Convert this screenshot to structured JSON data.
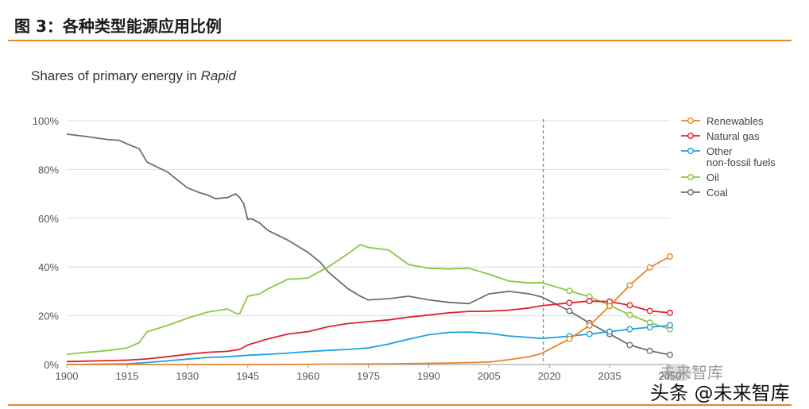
{
  "figure_title": "图 3：各种类型能源应用比例",
  "watermark": {
    "line1": "未来智库",
    "line2": "头条 @未来智库"
  },
  "chart_data": {
    "type": "line",
    "title": "Shares of primary energy in",
    "title_italic": "Rapid",
    "xlabel": "",
    "ylabel": "",
    "xlim": [
      1900,
      2050
    ],
    "ylim": [
      0,
      100
    ],
    "x_ticks": [
      1900,
      1915,
      1930,
      1945,
      1960,
      1975,
      1990,
      2005,
      2020,
      2035,
      2050
    ],
    "x_tick_labels": [
      "1900",
      "1915",
      "1930",
      "1945",
      "1960",
      "1975",
      "1990",
      "2005",
      "2020",
      "2035",
      "2050"
    ],
    "y_ticks": [
      0,
      20,
      40,
      60,
      80,
      100
    ],
    "y_tick_labels": [
      "0%",
      "20%",
      "40%",
      "60%",
      "80%",
      "100%"
    ],
    "forecast_divider_x": 2018.5,
    "legend_position": "right",
    "series": [
      {
        "name": "Renewables",
        "color": "#e8862a",
        "x": [
          1900,
          1950,
          1980,
          1995,
          2005,
          2010,
          2015,
          2018,
          2025,
          2030,
          2035,
          2040,
          2045,
          2050
        ],
        "values": [
          0,
          0,
          0.3,
          0.6,
          1.0,
          2.0,
          3.2,
          4.5,
          10.5,
          16,
          24,
          32.5,
          39.8,
          44.3
        ],
        "markers_from": 2025
      },
      {
        "name": "Natural gas",
        "color": "#e0202e",
        "x": [
          1900,
          1905,
          1910,
          1915,
          1920,
          1925,
          1930,
          1935,
          1940,
          1943,
          1945,
          1950,
          1955,
          1960,
          1965,
          1970,
          1975,
          1980,
          1985,
          1990,
          1995,
          2000,
          2005,
          2010,
          2015,
          2018,
          2025,
          2030,
          2035,
          2040,
          2045,
          2050
        ],
        "values": [
          1.2,
          1.4,
          1.6,
          1.8,
          2.3,
          3.2,
          4.2,
          5.0,
          5.4,
          6.2,
          8.0,
          10.5,
          12.5,
          13.5,
          15.5,
          16.8,
          17.6,
          18.3,
          19.4,
          20.3,
          21.2,
          21.8,
          21.9,
          22.3,
          23.2,
          24.1,
          25.3,
          26.0,
          25.8,
          24.3,
          22.0,
          21.2
        ],
        "markers_from": 2025
      },
      {
        "name": "Other\nnon-fossil fuels",
        "color": "#1ba3dc",
        "x": [
          1900,
          1915,
          1920,
          1925,
          1930,
          1935,
          1940,
          1945,
          1950,
          1955,
          1960,
          1965,
          1970,
          1975,
          1980,
          1985,
          1990,
          1995,
          2000,
          2005,
          2010,
          2015,
          2018,
          2025,
          2030,
          2035,
          2040,
          2045,
          2050
        ],
        "values": [
          0,
          0.3,
          0.8,
          1.5,
          2.2,
          2.9,
          3.2,
          3.8,
          4.2,
          4.7,
          5.3,
          5.8,
          6.2,
          6.8,
          8.4,
          10.4,
          12.2,
          13.2,
          13.3,
          12.8,
          11.7,
          11.1,
          10.7,
          11.6,
          12.5,
          13.5,
          14.5,
          15.3,
          16.1
        ],
        "markers_from": 2025
      },
      {
        "name": "Oil",
        "color": "#8cc63f",
        "x": [
          1900,
          1905,
          1910,
          1915,
          1918,
          1920,
          1925,
          1930,
          1935,
          1940,
          1942,
          1943,
          1945,
          1948,
          1950,
          1955,
          1958,
          1960,
          1965,
          1970,
          1973,
          1975,
          1980,
          1985,
          1990,
          1995,
          2000,
          2005,
          2010,
          2015,
          2018,
          2025,
          2030,
          2035,
          2040,
          2045,
          2050
        ],
        "values": [
          4.2,
          5.0,
          5.7,
          6.8,
          9.0,
          13.5,
          16.0,
          19.0,
          21.5,
          22.8,
          21.0,
          20.8,
          28.0,
          29.0,
          31.0,
          35.0,
          35.2,
          35.5,
          40.0,
          45.5,
          49.2,
          48.0,
          47.0,
          41.0,
          39.5,
          39.2,
          39.5,
          37.0,
          34.2,
          33.5,
          33.6,
          30.2,
          27.8,
          24.3,
          20.4,
          17.2,
          14.5
        ],
        "markers_from": 2025
      },
      {
        "name": "Coal",
        "color": "#6d6e70",
        "x": [
          1900,
          1905,
          1910,
          1913,
          1915,
          1918,
          1920,
          1925,
          1930,
          1933,
          1935,
          1937,
          1940,
          1942,
          1943,
          1944,
          1945,
          1946,
          1948,
          1950,
          1955,
          1960,
          1963,
          1965,
          1970,
          1973,
          1975,
          1980,
          1985,
          1990,
          1995,
          2000,
          2005,
          2010,
          2015,
          2018,
          2025,
          2030,
          2035,
          2040,
          2045,
          2050
        ],
        "values": [
          94.5,
          93.5,
          92.3,
          92.0,
          90.5,
          88.5,
          83.0,
          79.0,
          72.5,
          70.5,
          69.5,
          68.0,
          68.5,
          70.0,
          68.5,
          66.0,
          59.5,
          59.8,
          58.0,
          55.0,
          51.0,
          46.0,
          42.0,
          38.0,
          31.0,
          28.0,
          26.5,
          27.0,
          28.0,
          26.5,
          25.5,
          25.0,
          29.0,
          30.0,
          29.0,
          27.8,
          22.0,
          17.0,
          12.5,
          8.0,
          5.6,
          4.0
        ],
        "markers_from": 2025
      }
    ]
  }
}
